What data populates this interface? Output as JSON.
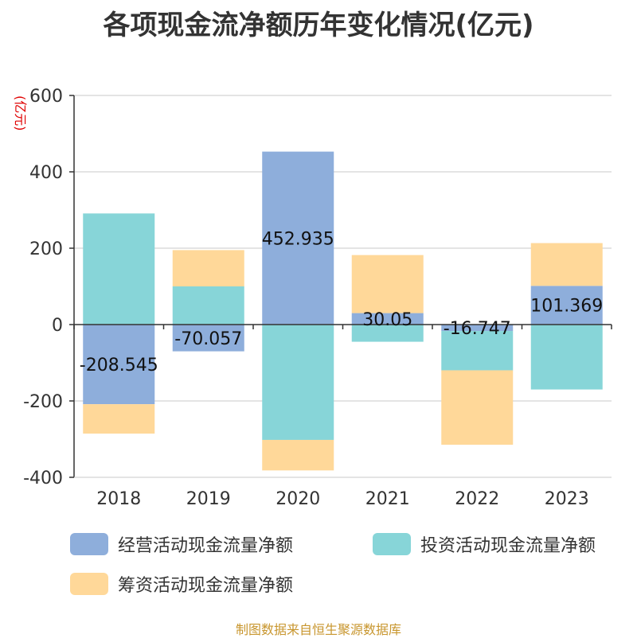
{
  "title": "各项现金流净额历年变化情况(亿元)",
  "unit_label": "(亿元)",
  "source": "制图数据来自恒生聚源数据库",
  "chart_data": {
    "type": "bar",
    "stacked": true,
    "categories": [
      "2018",
      "2019",
      "2020",
      "2021",
      "2022",
      "2023"
    ],
    "ylim": [
      -400,
      600
    ],
    "yticks": [
      -400,
      -200,
      0,
      200,
      400,
      600
    ],
    "grid": true,
    "legend_position": "bottom",
    "series": [
      {
        "name": "经营活动现金流量净额",
        "color": "#8eaedb",
        "values": [
          -208.545,
          -70.057,
          452.935,
          30.05,
          -16.747,
          101.369
        ],
        "labels": [
          "-208.545",
          "-70.057",
          "452.935",
          "30.05",
          "-16.747",
          "101.369"
        ]
      },
      {
        "name": "投资活动现金流量净额",
        "color": "#87d5d8",
        "values": [
          291,
          100,
          -302,
          -45,
          -103,
          -170
        ]
      },
      {
        "name": "筹资活动现金流量净额",
        "color": "#ffd899",
        "values": [
          -77,
          95,
          -80,
          152,
          -195,
          112
        ]
      }
    ]
  }
}
